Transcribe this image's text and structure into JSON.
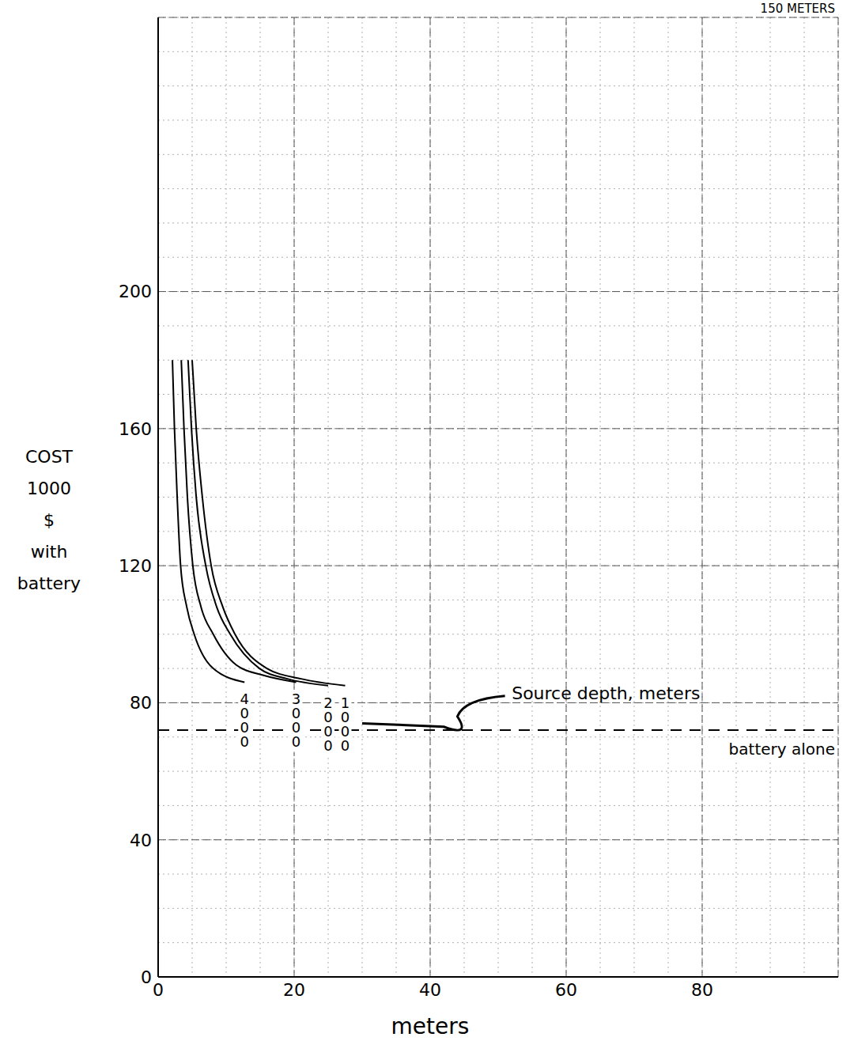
{
  "chart_data": {
    "type": "line",
    "title": "150 METERS",
    "x_label": "meters",
    "y_label": "COST 1000 $ with battery",
    "annotation": "Source depth, meters",
    "xlim": [
      0,
      100
    ],
    "xticks": [
      0,
      20,
      40,
      60,
      80
    ],
    "ylim": [
      0,
      280
    ],
    "yticks": [
      0,
      40,
      80,
      120,
      160,
      200
    ],
    "grid": true,
    "series": [
      {
        "name": "4000",
        "color": "#000000",
        "x": [
          2.1,
          2.4,
          2.8,
          3.3,
          4.2,
          5.3,
          8.1,
          12.7
        ],
        "values": [
          180,
          160,
          140,
          120,
          108,
          100,
          90,
          86
        ]
      },
      {
        "name": "3000",
        "color": "#000000",
        "x": [
          3.4,
          3.8,
          4.3,
          5.1,
          6.3,
          8.1,
          11.5,
          15.5,
          20.3
        ],
        "values": [
          180,
          160,
          140,
          120,
          108,
          100,
          91,
          88,
          86
        ]
      },
      {
        "name": "2000",
        "color": "#000000",
        "x": [
          4.4,
          4.9,
          5.6,
          7,
          8.6,
          10.6,
          14.9,
          19,
          25
        ],
        "values": [
          180,
          160,
          140,
          120,
          108,
          100,
          90,
          87,
          85
        ]
      },
      {
        "name": "1000",
        "color": "#000000",
        "x": [
          5,
          5.6,
          6.5,
          7.8,
          9.5,
          11.3,
          16,
          21,
          27.5
        ],
        "values": [
          180,
          160,
          140,
          120,
          108,
          100,
          90,
          87,
          85
        ]
      }
    ],
    "reference_lines": [
      {
        "name": "battery alone",
        "value": 72,
        "line_style": "dashed",
        "color": "#000000"
      }
    ]
  }
}
